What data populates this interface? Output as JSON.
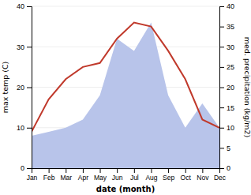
{
  "chart_data": {
    "type": "line",
    "xlabel": "date (month)",
    "ylabel": "max temp (C)",
    "y2label": "med. precipitation (kg/m2)",
    "categories": [
      "Jan",
      "Feb",
      "Mar",
      "Apr",
      "May",
      "Jun",
      "Jul",
      "Aug",
      "Sep",
      "Oct",
      "Nov",
      "Dec"
    ],
    "series": [
      {
        "type": "area",
        "axis": "y2",
        "color": "#b8c4ea",
        "values": [
          8,
          9,
          10,
          12,
          18,
          32,
          29,
          36,
          18,
          10,
          16,
          10
        ]
      },
      {
        "type": "line",
        "color": "#c0392b",
        "values": [
          9,
          17,
          22,
          25,
          26,
          32,
          36,
          35,
          29,
          22,
          12,
          10
        ]
      }
    ],
    "ylim": [
      0,
      40
    ],
    "yticks": [
      0,
      10,
      20,
      30,
      40
    ],
    "y2lim": [
      0,
      40
    ],
    "y2ticks": [
      0,
      5,
      10,
      15,
      20,
      25,
      30,
      35,
      40
    ],
    "grid": true
  }
}
